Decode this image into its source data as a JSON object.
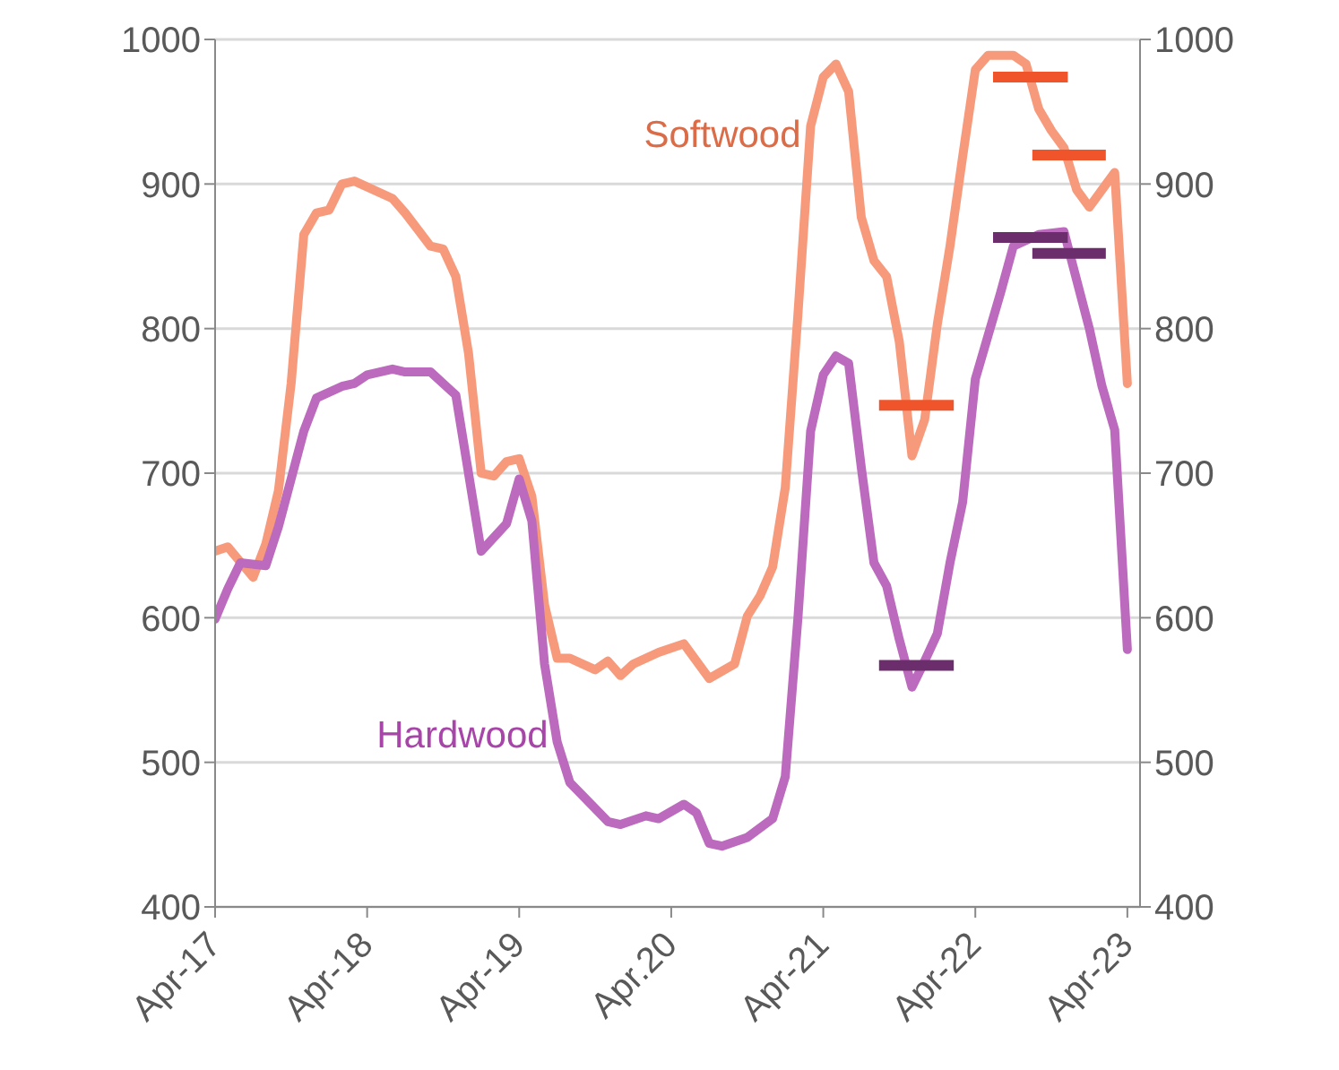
{
  "chart_data": {
    "type": "line",
    "xlim": [
      "2017-04",
      "2023-05"
    ],
    "xticks": [
      {
        "value": "2017-04",
        "label": "Apr-17"
      },
      {
        "value": "2018-04",
        "label": "Apr-18"
      },
      {
        "value": "2019-04",
        "label": "Apr-19"
      },
      {
        "value": "2020-04",
        "label": "Apr.20"
      },
      {
        "value": "2021-04",
        "label": "Apr-21"
      },
      {
        "value": "2022-04",
        "label": "Apr-22"
      },
      {
        "value": "2023-04",
        "label": "Apr-23"
      }
    ],
    "ylim": [
      400,
      1000
    ],
    "yticks": [
      400,
      500,
      600,
      700,
      800,
      900,
      1000
    ],
    "y2lim": [
      400,
      1000
    ],
    "y2ticks": [
      400,
      500,
      600,
      700,
      800,
      900,
      1000
    ],
    "grid": "y",
    "marker": "none",
    "line_style": "solid",
    "series": [
      {
        "name": "Softwood",
        "color": "#f79a7c",
        "x": [
          "2017-04",
          "2017-05",
          "2017-07",
          "2017-08",
          "2017-09",
          "2017-10",
          "2017-11",
          "2017-12",
          "2018-01",
          "2018-02",
          "2018-03",
          "2018-06",
          "2018-07",
          "2018-09",
          "2018-10",
          "2018-11",
          "2018-12",
          "2019-01",
          "2019-02",
          "2019-03",
          "2019-04",
          "2019-05",
          "2019-06",
          "2019-07",
          "2019-08",
          "2019-10",
          "2019-11",
          "2019-12",
          "2020-01",
          "2020-03",
          "2020-05",
          "2020-07",
          "2020-09",
          "2020-10",
          "2020-11",
          "2020-12",
          "2021-01",
          "2021-02",
          "2021-03",
          "2021-04",
          "2021-05",
          "2021-06",
          "2021-07",
          "2021-08",
          "2021-09",
          "2021-10",
          "2021-11",
          "2021-12",
          "2022-01",
          "2022-02",
          "2022-03",
          "2022-04",
          "2022-05",
          "2022-07",
          "2022-08",
          "2022-09",
          "2022-10",
          "2022-11",
          "2022-12",
          "2023-01",
          "2023-02",
          "2023-03",
          "2023-04"
        ],
        "values": [
          646,
          649,
          628,
          651,
          688,
          762,
          865,
          880,
          882,
          900,
          902,
          890,
          880,
          857,
          855,
          836,
          783,
          700,
          698,
          708,
          710,
          684,
          609,
          572,
          572,
          564,
          570,
          560,
          568,
          576,
          582,
          558,
          568,
          601,
          615,
          635,
          690,
          810,
          940,
          974,
          983,
          964,
          877,
          847,
          836,
          791,
          712,
          737,
          803,
          857,
          919,
          979,
          989,
          989,
          983,
          952,
          937,
          925,
          896,
          884,
          896,
          908,
          762
        ]
      },
      {
        "name": "Hardwood",
        "color": "#bc6abd",
        "x": [
          "2017-04",
          "2017-05",
          "2017-06",
          "2017-08",
          "2017-09",
          "2017-11",
          "2017-12",
          "2018-02",
          "2018-03",
          "2018-04",
          "2018-06",
          "2018-07",
          "2018-09",
          "2018-11",
          "2019-01",
          "2019-03",
          "2019-04",
          "2019-05",
          "2019-06",
          "2019-07",
          "2019-08",
          "2019-11",
          "2019-12",
          "2020-02",
          "2020-03",
          "2020-05",
          "2020-06",
          "2020-07",
          "2020-08",
          "2020-10",
          "2020-12",
          "2021-01",
          "2021-02",
          "2021-03",
          "2021-04",
          "2021-05",
          "2021-06",
          "2021-07",
          "2021-08",
          "2021-09",
          "2021-10",
          "2021-11",
          "2021-12",
          "2022-01",
          "2022-02",
          "2022-03",
          "2022-04",
          "2022-06",
          "2022-07",
          "2022-09",
          "2022-11",
          "2023-01",
          "2023-02",
          "2023-03",
          "2023-04"
        ],
        "values": [
          599,
          620,
          638,
          636,
          663,
          729,
          752,
          760,
          762,
          768,
          772,
          770,
          770,
          754,
          646,
          665,
          696,
          667,
          568,
          514,
          486,
          459,
          457,
          463,
          461,
          471,
          465,
          444,
          442,
          448,
          461,
          490,
          600,
          729,
          768,
          781,
          776,
          704,
          638,
          622,
          585,
          552,
          570,
          589,
          638,
          680,
          765,
          825,
          857,
          865,
          867,
          800,
          760,
          730,
          578
        ]
      },
      {
        "color": "#f0542a",
        "x": [
          "2021-08-13",
          "2022-02-10"
        ],
        "values": [
          747,
          747
        ]
      },
      {
        "color": "#f0542a",
        "x": [
          "2022-05-13",
          "2022-11-10"
        ],
        "values": [
          974,
          974
        ]
      },
      {
        "color": "#f0542a",
        "x": [
          "2022-08-16",
          "2023-02-10"
        ],
        "values": [
          920,
          920
        ]
      },
      {
        "color": "#6b2d6b",
        "x": [
          "2021-08-13",
          "2022-02-10"
        ],
        "values": [
          567,
          567
        ]
      },
      {
        "color": "#6b2d6b",
        "x": [
          "2022-05-13",
          "2022-11-10"
        ],
        "values": [
          863,
          863
        ]
      },
      {
        "color": "#6b2d6b",
        "x": [
          "2022-08-16",
          "2023-02-10"
        ],
        "values": [
          852,
          852
        ]
      }
    ]
  }
}
